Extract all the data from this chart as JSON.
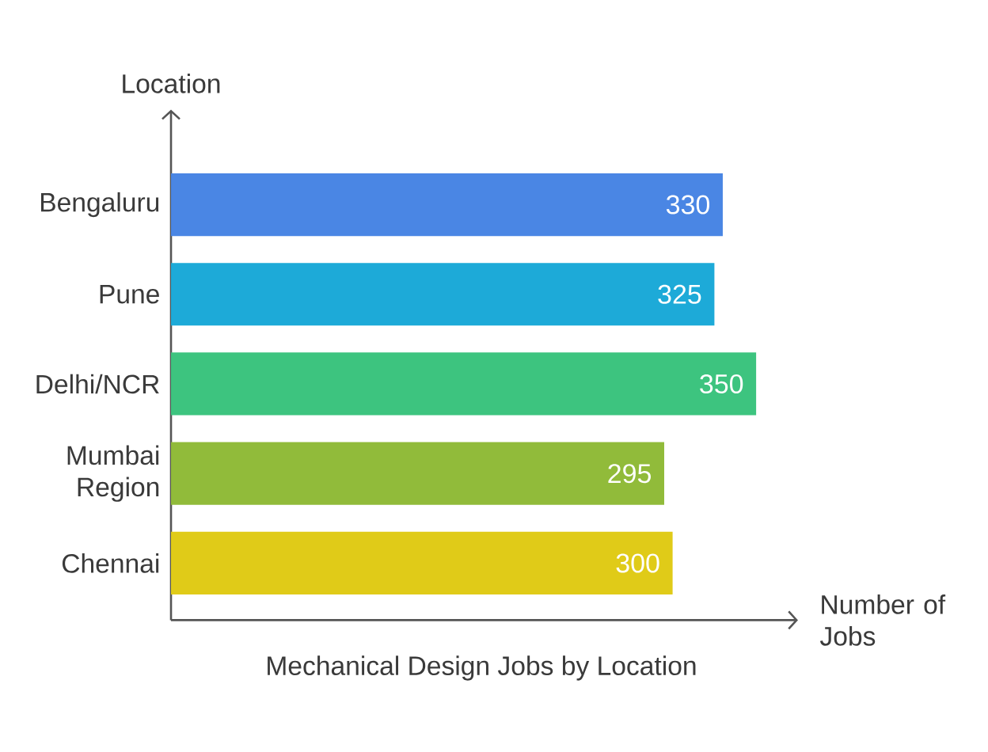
{
  "chart_data": {
    "type": "bar",
    "orientation": "horizontal",
    "title": "Mechanical Design Jobs by Location",
    "xlabel": "Number of Jobs",
    "ylabel": "Location",
    "categories": [
      "Bengaluru",
      "Pune",
      "Delhi/NCR",
      "Mumbai Region",
      "Chennai"
    ],
    "values": [
      330,
      325,
      350,
      295,
      300
    ],
    "colors": [
      "#4a86e4",
      "#1daad8",
      "#3dc47f",
      "#91bb3a",
      "#e0cb18"
    ],
    "xlim": [
      0,
      375
    ],
    "data_labels": true,
    "tick_labels": "y"
  }
}
